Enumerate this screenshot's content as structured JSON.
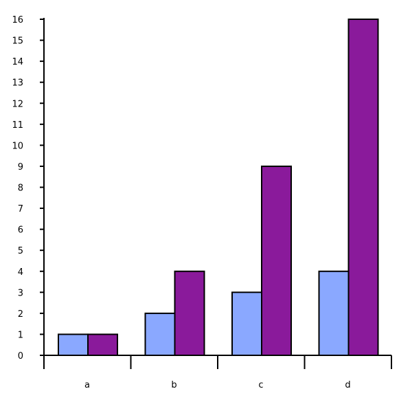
{
  "chart_data": {
    "type": "bar",
    "title": "",
    "xlabel": "",
    "ylabel": "",
    "categories": [
      "a",
      "b",
      "c",
      "d"
    ],
    "series": [
      {
        "values": [
          1,
          2,
          3,
          4
        ],
        "color": "#8aa8ff"
      },
      {
        "values": [
          1,
          4,
          9,
          16
        ],
        "color": "#8a1a9b"
      }
    ],
    "ylim": [
      0,
      16
    ],
    "yticks": [
      "0",
      "1",
      "2",
      "3",
      "4",
      "5",
      "6",
      "7",
      "8",
      "9",
      "10",
      "11",
      "12",
      "13",
      "14",
      "15",
      "16"
    ],
    "grid": false,
    "legend": "none"
  }
}
